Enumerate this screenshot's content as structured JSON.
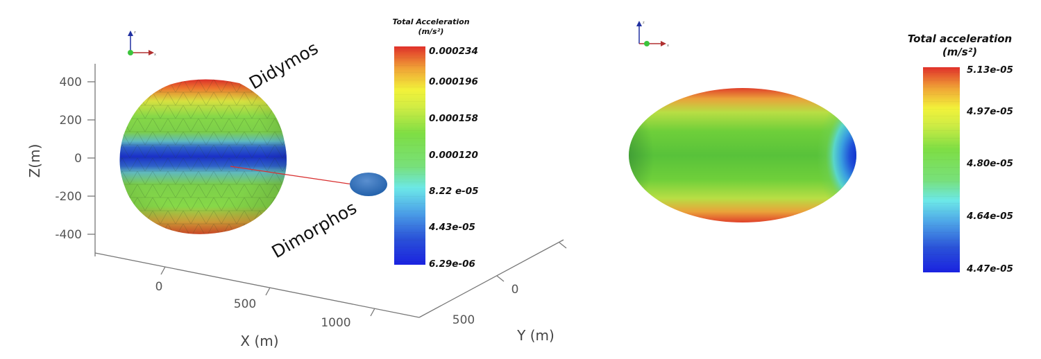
{
  "left_panel": {
    "orientation_axes": {
      "x": "x",
      "y": "y",
      "z": "z"
    },
    "labels": {
      "primary": "Didymos",
      "secondary": "Dimorphos"
    },
    "axes": {
      "z_label": "Z(m)",
      "z_ticks": [
        "400",
        "200",
        "0",
        "-200",
        "-400"
      ],
      "x_label": "X (m)",
      "x_ticks": [
        "0",
        "500",
        "1000"
      ],
      "y_label": "Y (m)",
      "y_ticks": [
        "0",
        "500"
      ]
    },
    "colorbar": {
      "title_line1": "Total Acceleration",
      "title_line2": "(m/s²)",
      "ticks": [
        "0.000234",
        "0.000196",
        "0.000158",
        "0.000120",
        "8.22 e-05",
        "4.43e-05",
        "6.29e-06"
      ]
    }
  },
  "right_panel": {
    "orientation_axes": {
      "x": "x",
      "z": "z"
    },
    "colorbar": {
      "title_line1": "Total acceleration",
      "title_line2": "(m/s²)",
      "ticks": [
        "5.13e-05",
        "4.97e-05",
        "4.80e-05",
        "4.64e-05",
        "4.47e-05"
      ]
    }
  },
  "colors": {
    "scale": [
      "#1a22e0",
      "#2a62d8",
      "#4fb3e8",
      "#6ce8e8",
      "#7be05a",
      "#7ede44",
      "#c8ea44",
      "#f2f23a",
      "#f2b93a",
      "#ec7a2e",
      "#e0302a"
    ]
  }
}
